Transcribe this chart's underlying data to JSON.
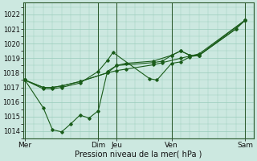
{
  "xlabel": "Pression niveau de la mer( hPa )",
  "ylim": [
    1013.5,
    1022.8
  ],
  "yticks": [
    1014,
    1015,
    1016,
    1017,
    1018,
    1019,
    1020,
    1021,
    1022
  ],
  "background_color": "#cce8e0",
  "grid_color": "#99ccbb",
  "line_color": "#1a5c1a",
  "xtick_labels": [
    "Mer",
    "Dim",
    "Jeu",
    "Ven",
    "Sam"
  ],
  "xtick_positions": [
    0.0,
    4.0,
    5.0,
    8.0,
    12.0
  ],
  "vline_positions": [
    0.0,
    4.0,
    5.0,
    8.0,
    12.0
  ],
  "xlim": [
    -0.1,
    12.5
  ],
  "series_x": [
    [
      0.0,
      1.0,
      1.5,
      2.0,
      3.0,
      4.5,
      5.0,
      5.5,
      7.0,
      7.5,
      8.5,
      9.5,
      12.0
    ],
    [
      0.0,
      1.0,
      1.5,
      2.0,
      3.0,
      4.0,
      4.5,
      4.8,
      6.8,
      7.2,
      8.0,
      8.5,
      9.0,
      9.5,
      11.5,
      12.0
    ],
    [
      0.0,
      1.0,
      1.5,
      2.0,
      2.5,
      3.0,
      3.5,
      4.0,
      4.5,
      5.0,
      7.0,
      7.5,
      8.0,
      8.5,
      9.0,
      9.5,
      12.0
    ],
    [
      0.0,
      1.0,
      1.5,
      2.0,
      3.0,
      4.5,
      5.0,
      5.5,
      7.0,
      8.0,
      8.5,
      9.0,
      9.5,
      11.5,
      12.0
    ]
  ],
  "series_y": [
    [
      1017.5,
      1017.0,
      1017.0,
      1017.1,
      1017.4,
      1018.0,
      1018.15,
      1018.25,
      1018.55,
      1018.7,
      1019.0,
      1019.3,
      1021.6
    ],
    [
      1017.5,
      1016.9,
      1016.9,
      1017.0,
      1017.3,
      1018.1,
      1018.85,
      1019.4,
      1017.6,
      1017.5,
      1018.65,
      1018.75,
      1019.1,
      1019.2,
      1021.0,
      1021.6
    ],
    [
      1017.5,
      1015.6,
      1014.1,
      1013.95,
      1014.5,
      1015.1,
      1014.9,
      1015.4,
      1018.1,
      1018.5,
      1018.7,
      1018.8,
      1019.2,
      1019.5,
      1019.2,
      1019.2,
      1021.6
    ],
    [
      1017.5,
      1017.0,
      1017.0,
      1017.1,
      1017.4,
      1018.0,
      1018.5,
      1018.65,
      1018.8,
      1019.2,
      1019.5,
      1019.2,
      1019.2,
      1021.0,
      1021.6
    ]
  ]
}
